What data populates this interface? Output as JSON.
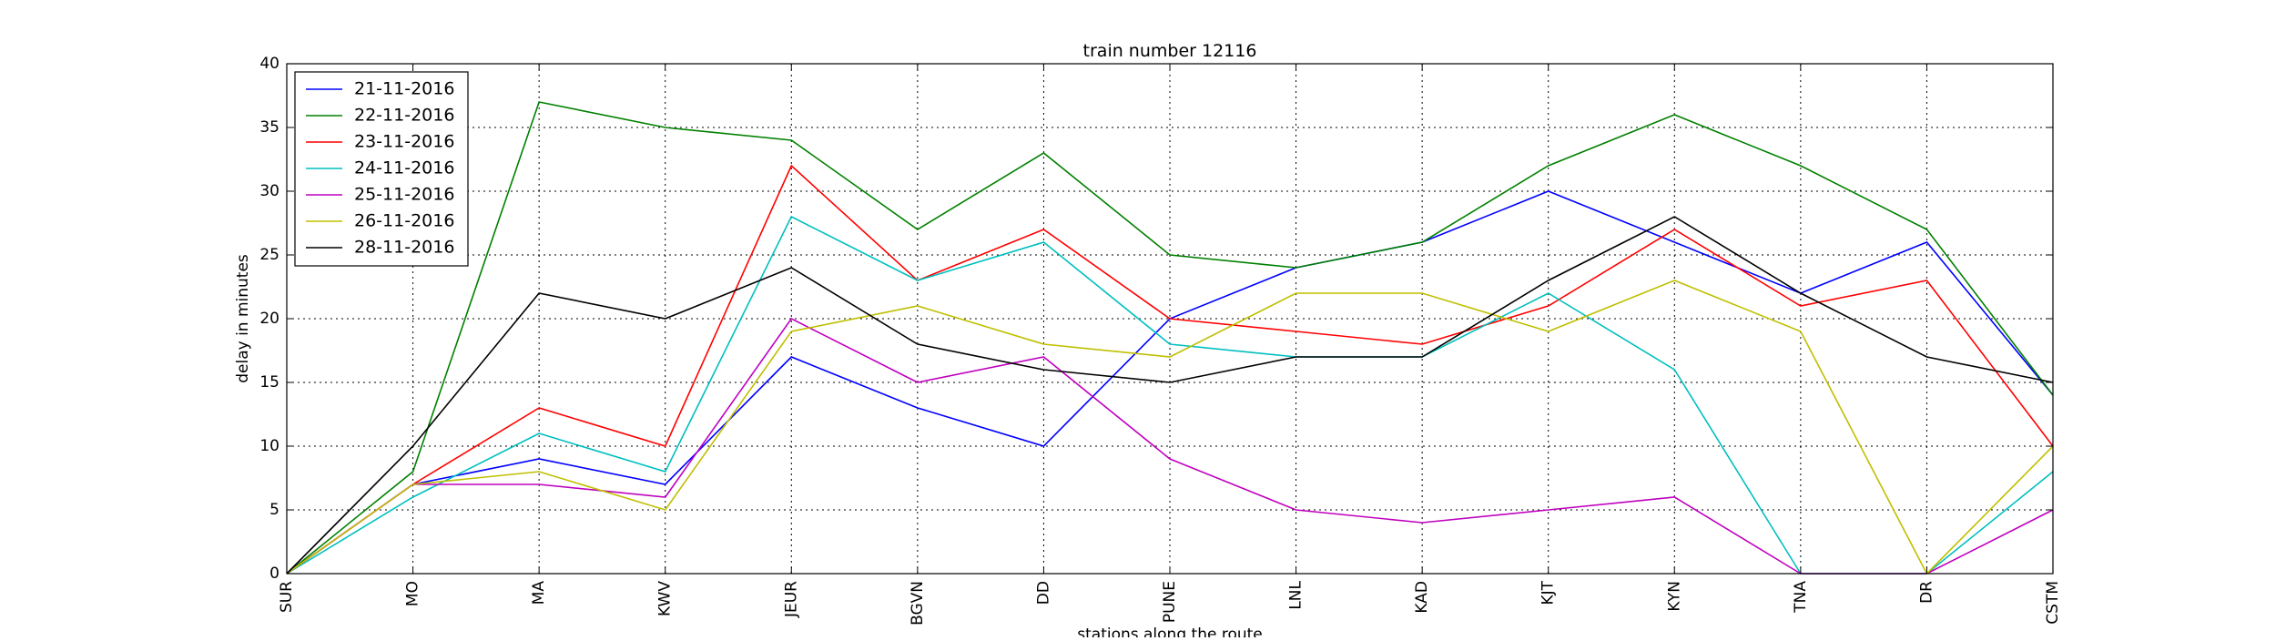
{
  "chart_data": {
    "type": "line",
    "title": "train number 12116",
    "xlabel": "stations along the route",
    "ylabel": "delay in minutes",
    "categories": [
      "SUR",
      "MO",
      "MA",
      "KWV",
      "JEUR",
      "BGVN",
      "DD",
      "PUNE",
      "LNL",
      "KAD",
      "KJT",
      "KYN",
      "TNA",
      "DR",
      "CSTM"
    ],
    "ylim": [
      0,
      40
    ],
    "yticks": [
      0,
      5,
      10,
      15,
      20,
      25,
      30,
      35,
      40
    ],
    "grid": true,
    "legend_position": "top-left",
    "series": [
      {
        "name": "21-11-2016",
        "color": "#0000ff",
        "values": [
          0,
          7,
          9,
          7,
          17,
          13,
          10,
          20,
          24,
          26,
          30,
          26,
          22,
          26,
          14
        ]
      },
      {
        "name": "22-11-2016",
        "color": "#008000",
        "values": [
          0,
          8,
          37,
          35,
          34,
          27,
          33,
          25,
          24,
          26,
          32,
          36,
          32,
          27,
          14
        ]
      },
      {
        "name": "23-11-2016",
        "color": "#ff0000",
        "values": [
          0,
          7,
          13,
          10,
          32,
          23,
          27,
          20,
          19,
          18,
          21,
          27,
          21,
          23,
          10
        ]
      },
      {
        "name": "24-11-2016",
        "color": "#00bfbf",
        "values": [
          0,
          6,
          11,
          8,
          28,
          23,
          26,
          18,
          17,
          17,
          22,
          16,
          0,
          0,
          8
        ]
      },
      {
        "name": "25-11-2016",
        "color": "#bf00bf",
        "values": [
          0,
          7,
          7,
          6,
          20,
          15,
          17,
          9,
          5,
          4,
          5,
          6,
          0,
          0,
          5
        ]
      },
      {
        "name": "26-11-2016",
        "color": "#bfbf00",
        "values": [
          0,
          7,
          8,
          5,
          19,
          21,
          18,
          17,
          22,
          22,
          19,
          23,
          19,
          0,
          10
        ]
      },
      {
        "name": "28-11-2016",
        "color": "#000000",
        "values": [
          0,
          10,
          22,
          20,
          24,
          18,
          16,
          15,
          17,
          17,
          23,
          28,
          22,
          17,
          15
        ]
      }
    ]
  }
}
